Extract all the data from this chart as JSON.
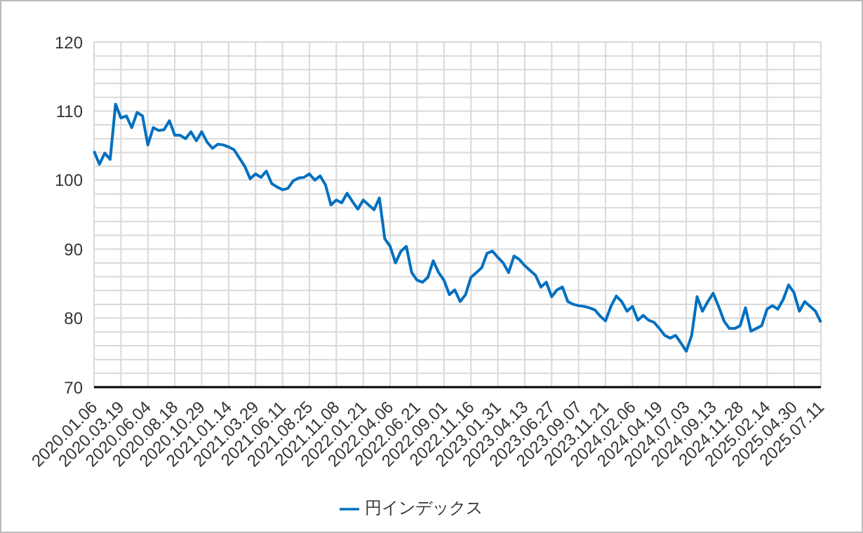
{
  "chart_data": {
    "type": "line",
    "categories": [
      "2020.01.06",
      null,
      null,
      null,
      null,
      "2020.03.19",
      null,
      null,
      null,
      null,
      "2020.06.04",
      null,
      null,
      null,
      null,
      "2020.08.18",
      null,
      null,
      null,
      null,
      "2020.10.29",
      null,
      null,
      null,
      null,
      "2021.01.14",
      null,
      null,
      null,
      null,
      "2021.03.29",
      null,
      null,
      null,
      null,
      "2021.06.11",
      null,
      null,
      null,
      null,
      "2021.08.25",
      null,
      null,
      null,
      null,
      "2021.11.08",
      null,
      null,
      null,
      null,
      "2022.01.21",
      null,
      null,
      null,
      null,
      "2022.04.06",
      null,
      null,
      null,
      null,
      "2022.06.21",
      null,
      null,
      null,
      null,
      "2022.09.01",
      null,
      null,
      null,
      null,
      "2022.11.16",
      null,
      null,
      null,
      null,
      "2023.01.31",
      null,
      null,
      null,
      null,
      "2023.04.13",
      null,
      null,
      null,
      null,
      "2023.06.27",
      null,
      null,
      null,
      null,
      "2023.09.07",
      null,
      null,
      null,
      null,
      "2023.11.21",
      null,
      null,
      null,
      null,
      "2024.02.06",
      null,
      null,
      null,
      null,
      "2024.04.19",
      null,
      null,
      null,
      null,
      "2024.07.03",
      null,
      null,
      null,
      null,
      "2024.09.13",
      null,
      null,
      null,
      null,
      "2024.11.28",
      null,
      null,
      null,
      null,
      "2025.02.14",
      null,
      null,
      null,
      null,
      "2025.04.30",
      null,
      null,
      null,
      null,
      "2025.07.11"
    ],
    "series": [
      {
        "name": "円インデックス",
        "color": "#0070c0",
        "values": [
          104.2,
          102.3,
          103.9,
          103,
          111,
          109,
          109.3,
          107.6,
          109.8,
          109.3,
          105.1,
          107.6,
          107.2,
          107.3,
          108.6,
          106.5,
          106.5,
          106,
          107,
          105.7,
          107,
          105.5,
          104.6,
          105.2,
          105.1,
          104.8,
          104.4,
          103.2,
          102,
          100.2,
          100.9,
          100.4,
          101.3,
          99.5,
          99,
          98.6,
          98.8,
          99.9,
          100.3,
          100.4,
          100.9,
          100,
          100.6,
          99.3,
          96.4,
          97.1,
          96.7,
          98.1,
          96.9,
          95.8,
          97.1,
          96.4,
          95.7,
          97.4,
          91.5,
          90.4,
          88,
          89.7,
          90.4,
          86.6,
          85.5,
          85.2,
          85.9,
          88.3,
          86.6,
          85.5,
          83.4,
          84.1,
          82.4,
          83.4,
          85.9,
          86.6,
          87.3,
          89.4,
          89.7,
          88.8,
          88,
          86.6,
          89,
          88.5,
          87.6,
          86.9,
          86.2,
          84.5,
          85.2,
          83.1,
          84.1,
          84.5,
          82.4,
          82,
          81.8,
          81.7,
          81.5,
          81.2,
          80.3,
          79.6,
          81.7,
          83.2,
          82.4,
          81,
          81.7,
          79.7,
          80.4,
          79.7,
          79.4,
          78.5,
          77.5,
          77.1,
          77.5,
          76.4,
          75.2,
          77.5,
          83.1,
          81,
          82.4,
          83.6,
          81.7,
          79.6,
          78.5,
          78.5,
          78.9,
          81.5,
          78.1,
          78.5,
          78.9,
          81.3,
          81.8,
          81.3,
          82.7,
          84.8,
          83.7,
          81,
          82.4,
          81.7,
          81,
          79.4
        ]
      }
    ],
    "ylim": [
      70,
      120
    ],
    "yticks": [
      70,
      {
        "value": 72,
        "label": null
      },
      {
        "value": 74,
        "label": null
      },
      {
        "value": 76,
        "label": null
      },
      {
        "value": 78,
        "label": null
      },
      80,
      {
        "value": 82,
        "label": null
      },
      {
        "value": 84,
        "label": null
      },
      {
        "value": 86,
        "label": null
      },
      {
        "value": 88,
        "label": null
      },
      90,
      {
        "value": 92,
        "label": null
      },
      {
        "value": 94,
        "label": null
      },
      {
        "value": 96,
        "label": null
      },
      {
        "value": 98,
        "label": null
      },
      100,
      {
        "value": 102,
        "label": null
      },
      {
        "value": 104,
        "label": null
      },
      {
        "value": 106,
        "label": null
      },
      {
        "value": 108,
        "label": null
      },
      110,
      {
        "value": 112,
        "label": null
      },
      {
        "value": 114,
        "label": null
      },
      {
        "value": 116,
        "label": null
      },
      {
        "value": 118,
        "label": null
      },
      120
    ],
    "grid": true,
    "legend": "bottom",
    "marker": "none",
    "line_style": "solid"
  }
}
